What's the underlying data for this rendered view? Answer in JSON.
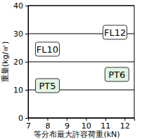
{
  "chart_data": {
    "type": "scatter",
    "x_label": "等分布最大許容荷重(kN)",
    "y_label": "重量(kg/㎡)",
    "xlim": [
      7,
      12.5
    ],
    "xticks": [
      7,
      8,
      9,
      10,
      11,
      12
    ],
    "ylim": [
      0,
      40
    ],
    "yticks": [
      0,
      10,
      20,
      30,
      40
    ],
    "grid": true,
    "annotations": [
      {
        "text": "FL10",
        "x": 8,
        "y": 24.5,
        "color": "#ffffff"
      },
      {
        "text": "FL12",
        "x": 11.5,
        "y": 30.5,
        "color": "#ffffff"
      },
      {
        "text": "PT5",
        "x": 8,
        "y": 11.5,
        "color": "#e2f5e2"
      },
      {
        "text": "PT6",
        "x": 11.6,
        "y": 15.5,
        "color": "#e2f5e2"
      }
    ]
  }
}
